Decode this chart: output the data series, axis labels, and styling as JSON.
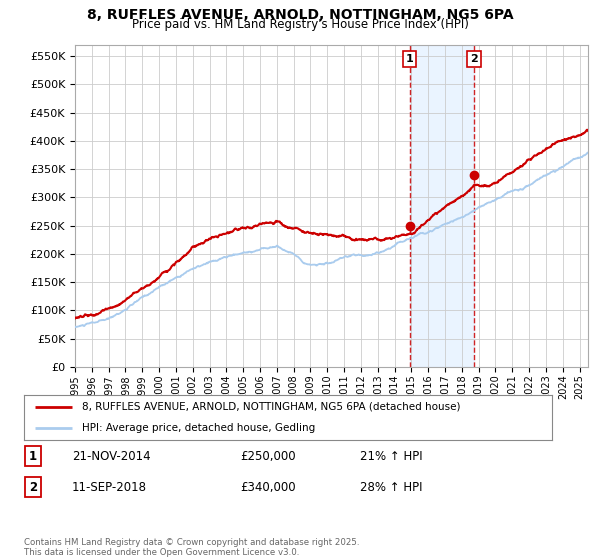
{
  "title_line1": "8, RUFFLES AVENUE, ARNOLD, NOTTINGHAM, NG5 6PA",
  "title_line2": "Price paid vs. HM Land Registry's House Price Index (HPI)",
  "ylabel_ticks": [
    "£0",
    "£50K",
    "£100K",
    "£150K",
    "£200K",
    "£250K",
    "£300K",
    "£350K",
    "£400K",
    "£450K",
    "£500K",
    "£550K"
  ],
  "ytick_values": [
    0,
    50000,
    100000,
    150000,
    200000,
    250000,
    300000,
    350000,
    400000,
    450000,
    500000,
    550000
  ],
  "ylim": [
    0,
    570000
  ],
  "xlim_start": 1995.0,
  "xlim_end": 2025.5,
  "red_line_color": "#cc0000",
  "blue_line_color": "#aaccee",
  "marker1_date": 2014.9,
  "marker2_date": 2018.72,
  "marker1_price": 250000,
  "marker2_price": 340000,
  "marker1_label": "1",
  "marker2_label": "2",
  "sale1_text": "21-NOV-2014",
  "sale1_price": "£250,000",
  "sale1_hpi": "21% ↑ HPI",
  "sale2_text": "11-SEP-2018",
  "sale2_price": "£340,000",
  "sale2_hpi": "28% ↑ HPI",
  "legend_label1": "8, RUFFLES AVENUE, ARNOLD, NOTTINGHAM, NG5 6PA (detached house)",
  "legend_label2": "HPI: Average price, detached house, Gedling",
  "footer_text": "Contains HM Land Registry data © Crown copyright and database right 2025.\nThis data is licensed under the Open Government Licence v3.0.",
  "bg_color": "#ffffff",
  "plot_bg_color": "#ffffff",
  "grid_color": "#cccccc",
  "shade_color": "#ddeeff",
  "box_border_color": "#cc0000",
  "x_ticks": [
    1995,
    1996,
    1997,
    1998,
    1999,
    2000,
    2001,
    2002,
    2003,
    2004,
    2005,
    2006,
    2007,
    2008,
    2009,
    2010,
    2011,
    2012,
    2013,
    2014,
    2015,
    2016,
    2017,
    2018,
    2019,
    2020,
    2021,
    2022,
    2023,
    2024,
    2025
  ]
}
